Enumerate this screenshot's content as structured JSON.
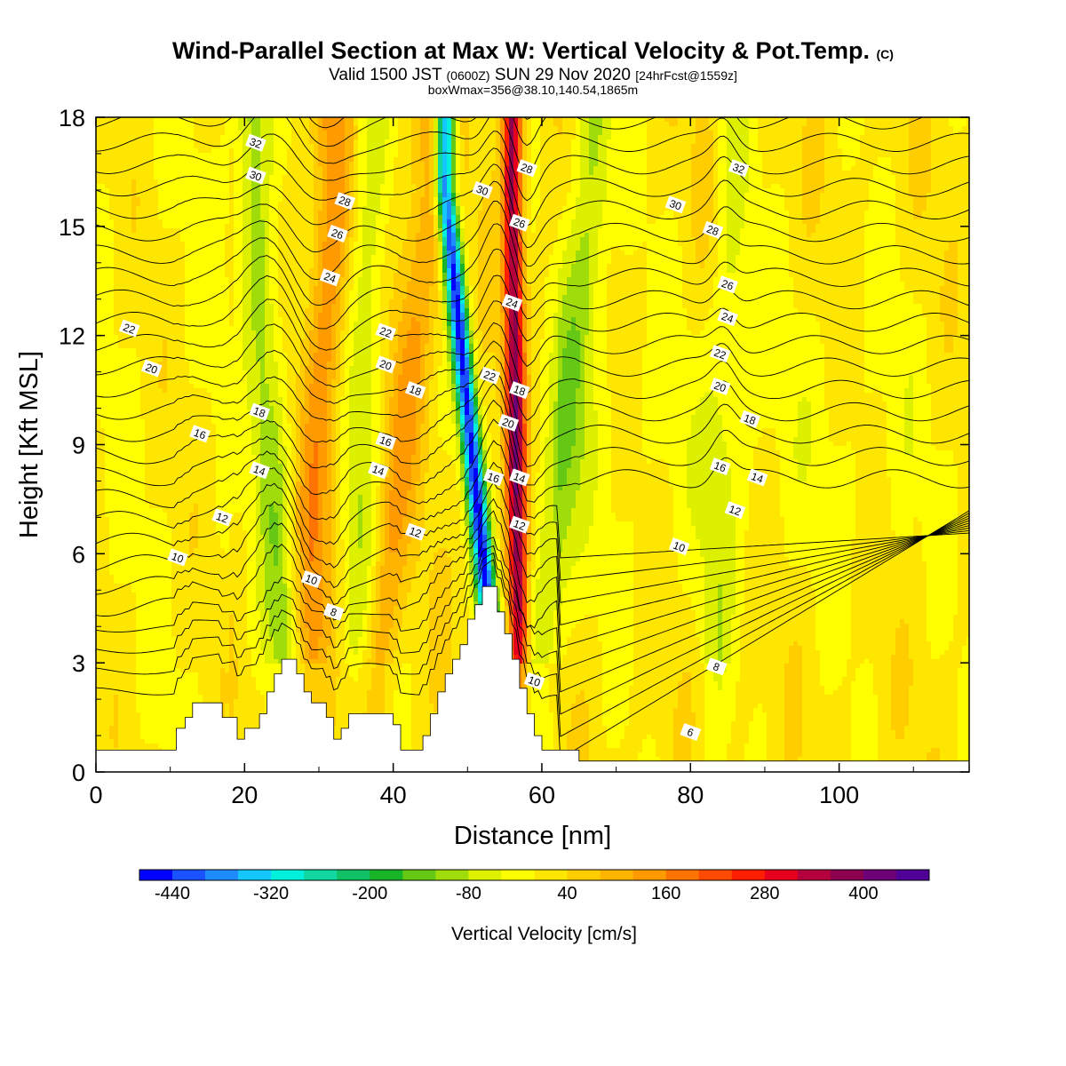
{
  "header": {
    "title_main": "Wind-Parallel Section at Max W: Vertical Velocity & Pot.Temp.",
    "title_mark": "(C)",
    "valid_a": "Valid 1500 JST",
    "valid_b": "(0600Z)",
    "valid_c": "SUN 29 Nov 2020",
    "valid_d": "[24hrFcst@1559z]",
    "boxline": "boxWmax=356@38.10,140.54,1865m"
  },
  "chart_data": {
    "type": "heatmap",
    "xlabel": "Distance [nm]",
    "ylabel": "Height [Kft MSL]",
    "xlim": [
      0,
      117.5
    ],
    "ylim": [
      0,
      18
    ],
    "x_ticks": [
      0,
      20,
      40,
      60,
      80,
      100
    ],
    "y_ticks": [
      0,
      3,
      6,
      9,
      12,
      15,
      18
    ],
    "colorbar": {
      "label": "Vertical Velocity [cm/s]",
      "tick_labels": [
        "-440",
        "-320",
        "-200",
        "-80",
        "40",
        "160",
        "280",
        "400"
      ],
      "min": -480,
      "max": 480,
      "step": 40,
      "colors": [
        "#0000ff",
        "#1a52ff",
        "#1e8cff",
        "#14c8ff",
        "#00f0dc",
        "#10d8a0",
        "#10c064",
        "#18b428",
        "#64c814",
        "#a0dc0a",
        "#dcf000",
        "#ffff00",
        "#ffe600",
        "#ffcd00",
        "#ffb400",
        "#ff9b00",
        "#ff7300",
        "#ff4b00",
        "#ff1e00",
        "#e6001e",
        "#b4003c",
        "#8c0050",
        "#6e0078",
        "#500096"
      ]
    },
    "cells": {
      "positive_bands": [
        {
          "x_bottom": 28,
          "x_top": 32,
          "peak": 130
        },
        {
          "x_bottom": 37,
          "x_top": 45,
          "peak": 110
        },
        {
          "x_bottom": 57,
          "x_top": 56,
          "peak": 356
        },
        {
          "x_bottom": 85,
          "x_top": 84,
          "peak": 80
        }
      ],
      "negative_bands": [
        {
          "x_bottom": 26,
          "x_top": 21,
          "peak": -130
        },
        {
          "x_bottom": 35,
          "x_top": 37,
          "peak": -90
        },
        {
          "x_bottom": 54,
          "x_top": 47,
          "peak": -460
        },
        {
          "x_bottom": 59,
          "x_top": 67,
          "peak": -120
        },
        {
          "x_bottom": 84,
          "x_top": 85,
          "peak": -130
        }
      ]
    },
    "terrain_kft": [
      [
        0,
        0.6
      ],
      [
        10.8,
        0.6
      ],
      [
        10.8,
        1.2
      ],
      [
        12,
        1.2
      ],
      [
        12,
        1.5
      ],
      [
        13,
        1.5
      ],
      [
        13,
        1.9
      ],
      [
        17,
        1.9
      ],
      [
        17,
        1.5
      ],
      [
        19,
        1.5
      ],
      [
        19,
        0.9
      ],
      [
        20,
        0.9
      ],
      [
        20,
        1.2
      ],
      [
        22,
        1.2
      ],
      [
        22,
        1.6
      ],
      [
        23,
        1.6
      ],
      [
        23,
        2.2
      ],
      [
        24,
        2.2
      ],
      [
        24,
        2.7
      ],
      [
        25,
        2.7
      ],
      [
        25,
        3.1
      ],
      [
        27,
        3.1
      ],
      [
        27,
        2.7
      ],
      [
        28,
        2.7
      ],
      [
        28,
        2.2
      ],
      [
        29,
        2.2
      ],
      [
        29,
        1.9
      ],
      [
        31,
        1.9
      ],
      [
        31,
        1.5
      ],
      [
        32,
        1.5
      ],
      [
        32,
        0.9
      ],
      [
        33,
        0.9
      ],
      [
        33,
        1.2
      ],
      [
        34,
        1.2
      ],
      [
        34,
        1.6
      ],
      [
        40,
        1.6
      ],
      [
        40,
        1.3
      ],
      [
        41,
        1.3
      ],
      [
        41,
        0.6
      ],
      [
        44,
        0.6
      ],
      [
        44,
        1.0
      ],
      [
        45,
        1.0
      ],
      [
        45,
        1.6
      ],
      [
        46,
        1.6
      ],
      [
        46,
        2.2
      ],
      [
        47,
        2.2
      ],
      [
        47,
        2.7
      ],
      [
        48,
        2.7
      ],
      [
        48,
        3.1
      ],
      [
        49,
        3.1
      ],
      [
        49,
        3.5
      ],
      [
        50,
        3.5
      ],
      [
        50,
        4.2
      ],
      [
        51,
        4.2
      ],
      [
        51,
        4.6
      ],
      [
        52,
        4.6
      ],
      [
        52,
        5.1
      ],
      [
        54,
        5.1
      ],
      [
        54,
        4.4
      ],
      [
        55,
        4.4
      ],
      [
        55,
        3.8
      ],
      [
        56,
        3.8
      ],
      [
        56,
        3.1
      ],
      [
        57,
        3.1
      ],
      [
        57,
        2.3
      ],
      [
        58,
        2.3
      ],
      [
        58,
        1.6
      ],
      [
        59,
        1.6
      ],
      [
        59,
        1.0
      ],
      [
        60,
        1.0
      ],
      [
        60,
        0.6
      ],
      [
        65,
        0.6
      ],
      [
        65,
        0.3
      ],
      [
        117.5,
        0.3
      ]
    ],
    "contours": {
      "field": "potential temperature",
      "labels": [
        {
          "text": "32",
          "x": 21.5,
          "y": 17.3
        },
        {
          "text": "30",
          "x": 21.5,
          "y": 16.4
        },
        {
          "text": "28",
          "x": 33.5,
          "y": 15.7
        },
        {
          "text": "26",
          "x": 32.5,
          "y": 14.8
        },
        {
          "text": "24",
          "x": 31.5,
          "y": 13.6
        },
        {
          "text": "22",
          "x": 4.5,
          "y": 12.2
        },
        {
          "text": "20",
          "x": 7.5,
          "y": 11.1
        },
        {
          "text": "22",
          "x": 39,
          "y": 12.1
        },
        {
          "text": "20",
          "x": 39,
          "y": 11.2
        },
        {
          "text": "18",
          "x": 43,
          "y": 10.5
        },
        {
          "text": "18",
          "x": 22,
          "y": 9.9
        },
        {
          "text": "16",
          "x": 14,
          "y": 9.3
        },
        {
          "text": "16",
          "x": 39,
          "y": 9.1
        },
        {
          "text": "14",
          "x": 22,
          "y": 8.3
        },
        {
          "text": "14",
          "x": 38,
          "y": 8.3
        },
        {
          "text": "12",
          "x": 17,
          "y": 7.0
        },
        {
          "text": "12",
          "x": 43,
          "y": 6.6
        },
        {
          "text": "10",
          "x": 11,
          "y": 5.9
        },
        {
          "text": "10",
          "x": 29,
          "y": 5.3
        },
        {
          "text": "8",
          "x": 32,
          "y": 4.4
        },
        {
          "text": "30",
          "x": 52,
          "y": 16.0
        },
        {
          "text": "28",
          "x": 58,
          "y": 16.6
        },
        {
          "text": "26",
          "x": 57,
          "y": 15.1
        },
        {
          "text": "24",
          "x": 56,
          "y": 12.9
        },
        {
          "text": "22",
          "x": 53,
          "y": 10.9
        },
        {
          "text": "18",
          "x": 57,
          "y": 10.5
        },
        {
          "text": "20",
          "x": 55.5,
          "y": 9.6
        },
        {
          "text": "16",
          "x": 53.5,
          "y": 8.1
        },
        {
          "text": "14",
          "x": 57,
          "y": 8.1
        },
        {
          "text": "12",
          "x": 57,
          "y": 6.8
        },
        {
          "text": "10",
          "x": 59,
          "y": 2.5
        },
        {
          "text": "30",
          "x": 78,
          "y": 15.6
        },
        {
          "text": "28",
          "x": 83,
          "y": 14.9
        },
        {
          "text": "32",
          "x": 86.5,
          "y": 16.6
        },
        {
          "text": "26",
          "x": 85,
          "y": 13.4
        },
        {
          "text": "24",
          "x": 85,
          "y": 12.5
        },
        {
          "text": "22",
          "x": 84,
          "y": 11.5
        },
        {
          "text": "20",
          "x": 84,
          "y": 10.6
        },
        {
          "text": "18",
          "x": 88,
          "y": 9.7
        },
        {
          "text": "16",
          "x": 84,
          "y": 8.4
        },
        {
          "text": "14",
          "x": 89,
          "y": 8.1
        },
        {
          "text": "12",
          "x": 86,
          "y": 7.2
        },
        {
          "text": "10",
          "x": 78.5,
          "y": 6.2
        },
        {
          "text": "8",
          "x": 83.5,
          "y": 2.9
        },
        {
          "text": "6",
          "x": 80,
          "y": 1.1
        }
      ]
    }
  }
}
